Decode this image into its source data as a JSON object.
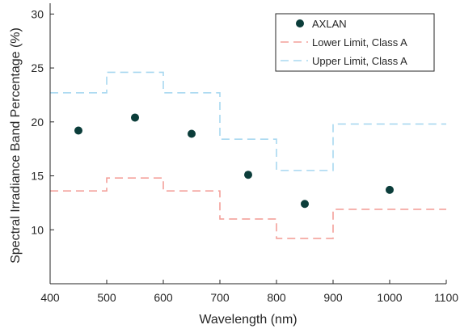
{
  "chart_data": {
    "type": "scatter",
    "xlabel": "Wavelength (nm)",
    "ylabel": "Spectral Irradiance Band Percentage (%)",
    "xlim": [
      400,
      1100
    ],
    "ylim": [
      5,
      31
    ],
    "xticks": [
      400,
      500,
      600,
      700,
      800,
      900,
      1000,
      1100
    ],
    "yticks": [
      10,
      15,
      20,
      25,
      30
    ],
    "grid": false,
    "legend_position": "top-right",
    "series": [
      {
        "name": "AXLAN",
        "kind": "points",
        "color": "#0b3d3a",
        "x": [
          450,
          550,
          650,
          750,
          850,
          1000
        ],
        "y": [
          19.2,
          20.4,
          18.9,
          15.1,
          12.4,
          13.7
        ]
      },
      {
        "name": "Lower Limit, Class A",
        "kind": "step",
        "color": "#f4a09a",
        "dashed": true,
        "x_edges": [
          400,
          500,
          600,
          700,
          800,
          900,
          1100
        ],
        "y": [
          13.6,
          14.8,
          13.6,
          11.0,
          9.2,
          11.9
        ]
      },
      {
        "name": "Upper Limit, Class A",
        "kind": "step",
        "color": "#a8d8f0",
        "dashed": true,
        "x_edges": [
          400,
          500,
          600,
          700,
          800,
          900,
          1100
        ],
        "y": [
          22.7,
          24.6,
          22.7,
          18.4,
          15.5,
          19.8
        ]
      }
    ]
  }
}
